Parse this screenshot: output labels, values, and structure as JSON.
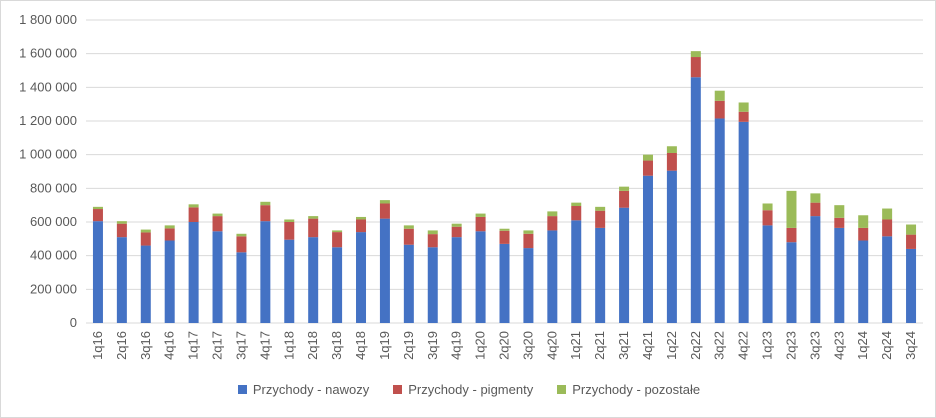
{
  "chart_data": {
    "type": "bar",
    "stacked": true,
    "categories": [
      "1q16",
      "2q16",
      "3q16",
      "4q16",
      "1q17",
      "2q17",
      "3q17",
      "4q17",
      "1q18",
      "2q18",
      "3q18",
      "4q18",
      "1q19",
      "2q19",
      "3q19",
      "4q19",
      "1q20",
      "2q20",
      "3q20",
      "4q20",
      "1q21",
      "2q21",
      "3q21",
      "4q21",
      "1q22",
      "2q22",
      "3q22",
      "4q22",
      "1q23",
      "2q23",
      "3q23",
      "4q23",
      "1q24",
      "2q24",
      "3q24"
    ],
    "series": [
      {
        "name": "Przychody - nawozy",
        "color": "#4472c4",
        "values": [
          605000,
          510000,
          460000,
          490000,
          600000,
          545000,
          420000,
          605000,
          495000,
          510000,
          450000,
          540000,
          620000,
          465000,
          450000,
          510000,
          545000,
          470000,
          445000,
          550000,
          610000,
          565000,
          685000,
          875000,
          905000,
          1460000,
          1215000,
          1195000,
          580000,
          480000,
          635000,
          565000,
          490000,
          515000,
          440000
        ]
      },
      {
        "name": "Przychody - pigmenty",
        "color": "#c0504d",
        "values": [
          72000,
          80000,
          78000,
          72000,
          87000,
          90000,
          95000,
          95000,
          105000,
          110000,
          90000,
          75000,
          90000,
          95000,
          78000,
          62000,
          85000,
          78000,
          85000,
          85000,
          85000,
          102000,
          100000,
          90000,
          105000,
          120000,
          105000,
          60000,
          90000,
          85000,
          80000,
          60000,
          75000,
          100000,
          85000
        ]
      },
      {
        "name": "Przychody - pozostałe",
        "color": "#9bbb59",
        "values": [
          13000,
          15000,
          17000,
          18000,
          18000,
          15000,
          15000,
          20000,
          15000,
          15000,
          10000,
          15000,
          20000,
          20000,
          22000,
          18000,
          20000,
          12000,
          20000,
          28000,
          20000,
          23000,
          25000,
          35000,
          40000,
          35000,
          60000,
          55000,
          40000,
          220000,
          55000,
          75000,
          75000,
          65000,
          60000
        ]
      }
    ],
    "y_ticks": [
      "0",
      "200 000",
      "400 000",
      "600 000",
      "800 000",
      "1 000 000",
      "1 200 000",
      "1 400 000",
      "1 600 000",
      "1 800 000"
    ],
    "ylim": [
      0,
      1800000
    ],
    "ystep": 200000,
    "grid": true,
    "legend_position": "bottom"
  }
}
